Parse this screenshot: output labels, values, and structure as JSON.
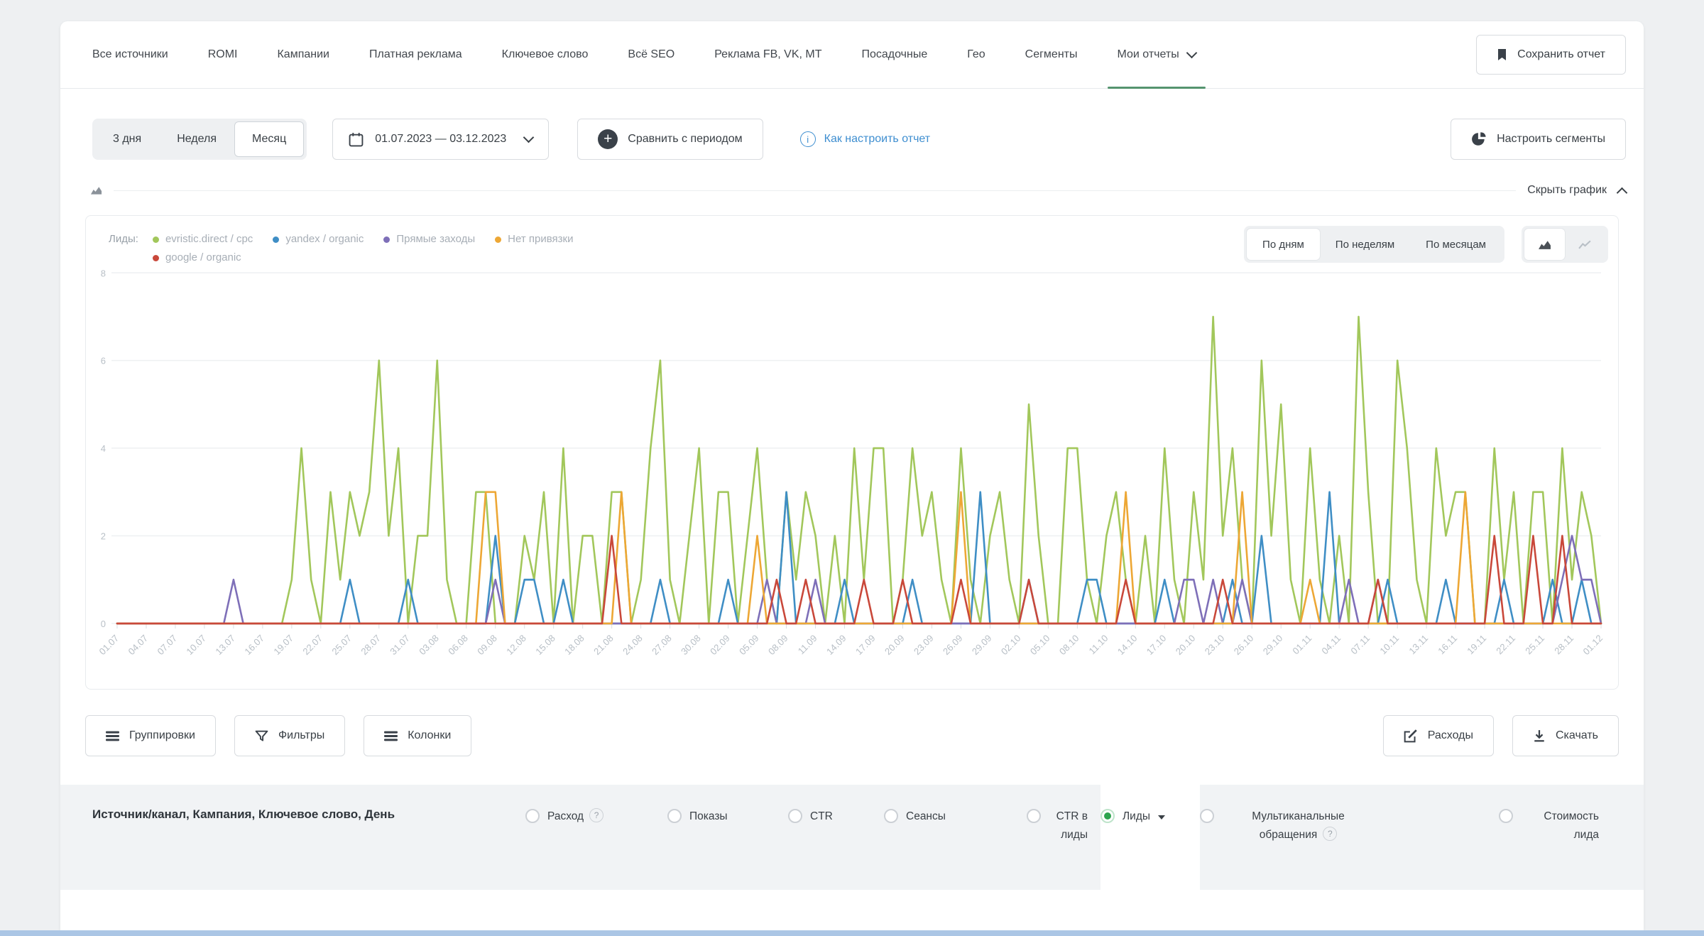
{
  "tabs": {
    "items": [
      {
        "label": "Все источники"
      },
      {
        "label": "ROMI"
      },
      {
        "label": "Кампании"
      },
      {
        "label": "Платная реклама"
      },
      {
        "label": "Ключевое слово"
      },
      {
        "label": "Всё SEO"
      },
      {
        "label": "Реклама FB, VK, MT"
      },
      {
        "label": "Посадочные"
      },
      {
        "label": "Гео"
      },
      {
        "label": "Сегменты"
      },
      {
        "label": "Мои отчеты",
        "active": true,
        "chevron": true
      }
    ],
    "save_label": "Сохранить отчет"
  },
  "controls": {
    "range_options": [
      "3 дня",
      "Неделя",
      "Месяц"
    ],
    "range_selected": "Месяц",
    "date_range": "01.07.2023 — 03.12.2023",
    "compare_label": "Сравнить с периодом",
    "help_label": "Как настроить отчет",
    "segments_label": "Настроить сегменты"
  },
  "chart_section": {
    "hide_label": "Скрыть график",
    "legend_label": "Лиды:",
    "period_options": [
      "По дням",
      "По неделям",
      "По месяцам"
    ],
    "period_selected": "По дням"
  },
  "chart_data": {
    "type": "line",
    "title": "Лиды",
    "metric": "Лиды",
    "x_start": "01.07.2023",
    "x_end": "01.12.2023",
    "x_unit": "day",
    "tick_every_days": 3,
    "x_tick_labels": [
      "01.07",
      "04.07",
      "07.07",
      "10.07",
      "13.07",
      "16.07",
      "19.07",
      "22.07",
      "25.07",
      "28.07",
      "31.07",
      "03.08",
      "06.08",
      "09.08",
      "12.08",
      "15.08",
      "18.08",
      "21.08",
      "24.08",
      "27.08",
      "30.08",
      "02.09",
      "05.09",
      "08.09",
      "11.09",
      "14.09",
      "17.09",
      "20.09",
      "23.09",
      "26.09",
      "29.09",
      "02.10",
      "05.10",
      "08.10",
      "11.10",
      "14.10",
      "17.10",
      "20.10",
      "23.10",
      "26.10",
      "29.10",
      "01.11",
      "04.11",
      "07.11",
      "10.11",
      "13.11",
      "16.11",
      "19.11",
      "22.11",
      "25.11",
      "28.11",
      "01.12"
    ],
    "ylim": [
      0,
      8
    ],
    "yticks": [
      0,
      2,
      4,
      6,
      8
    ],
    "grid": "horizontal",
    "legend_position": "top-left",
    "legend_rows": [
      [
        0,
        1,
        2,
        3
      ],
      [
        4
      ]
    ],
    "series": [
      {
        "name": "evristic.direct / cpc",
        "color": "#a2c75b",
        "values": [
          0,
          0,
          0,
          0,
          0,
          0,
          0,
          0,
          0,
          0,
          0,
          0,
          0,
          0,
          0,
          0,
          0,
          0,
          1,
          4,
          1,
          0,
          3,
          1,
          3,
          2,
          3,
          6,
          2,
          4,
          0,
          2,
          2,
          6,
          1,
          0,
          0,
          3,
          3,
          0,
          0,
          0,
          2,
          1,
          3,
          0,
          4,
          0,
          2,
          2,
          0,
          3,
          3,
          0,
          1,
          4,
          6,
          1,
          0,
          2,
          4,
          0,
          3,
          3,
          0,
          2,
          4,
          1,
          0,
          3,
          1,
          3,
          2,
          0,
          2,
          0,
          4,
          1,
          4,
          4,
          0,
          1,
          4,
          2,
          3,
          1,
          0,
          4,
          1,
          0,
          2,
          3,
          1,
          0,
          5,
          2,
          0,
          0,
          4,
          4,
          1,
          0,
          2,
          3,
          1,
          0,
          2,
          0,
          4,
          1,
          0,
          3,
          1,
          7,
          2,
          4,
          1,
          0,
          6,
          2,
          5,
          1,
          0,
          4,
          1,
          0,
          2,
          0,
          7,
          3,
          0,
          0,
          6,
          4,
          1,
          0,
          4,
          2,
          3,
          3,
          0,
          0,
          4,
          1,
          3,
          0,
          3,
          3,
          0,
          4,
          1,
          3,
          2,
          0
        ]
      },
      {
        "name": "yandex / organic",
        "color": "#3f8ec5",
        "values": [
          0,
          0,
          0,
          0,
          0,
          0,
          0,
          0,
          0,
          0,
          0,
          0,
          0,
          0,
          0,
          0,
          0,
          0,
          0,
          0,
          0,
          0,
          0,
          0,
          1,
          0,
          0,
          0,
          0,
          0,
          1,
          0,
          0,
          0,
          0,
          0,
          0,
          0,
          0,
          2,
          0,
          0,
          1,
          1,
          0,
          0,
          1,
          0,
          0,
          0,
          0,
          0,
          0,
          0,
          0,
          0,
          1,
          0,
          0,
          0,
          0,
          0,
          0,
          1,
          0,
          0,
          0,
          0,
          0,
          3,
          0,
          0,
          0,
          0,
          0,
          1,
          0,
          0,
          0,
          0,
          0,
          0,
          1,
          0,
          0,
          0,
          0,
          0,
          0,
          3,
          0,
          0,
          0,
          0,
          1,
          0,
          0,
          0,
          0,
          0,
          1,
          1,
          0,
          0,
          0,
          0,
          0,
          0,
          1,
          0,
          0,
          0,
          0,
          0,
          0,
          1,
          0,
          0,
          2,
          0,
          0,
          0,
          0,
          0,
          0,
          3,
          0,
          0,
          0,
          0,
          0,
          1,
          0,
          0,
          0,
          0,
          0,
          1,
          0,
          0,
          0,
          0,
          0,
          1,
          0,
          0,
          0,
          0,
          1,
          0,
          0,
          1,
          0,
          0
        ]
      },
      {
        "name": "Прямые заходы",
        "color": "#7e6fb8",
        "values": [
          0,
          0,
          0,
          0,
          0,
          0,
          0,
          0,
          0,
          0,
          0,
          0,
          1,
          0,
          0,
          0,
          0,
          0,
          0,
          0,
          0,
          0,
          0,
          0,
          0,
          0,
          0,
          0,
          0,
          0,
          0,
          0,
          0,
          0,
          0,
          0,
          0,
          0,
          0,
          1,
          0,
          0,
          0,
          0,
          0,
          0,
          0,
          0,
          0,
          0,
          0,
          0,
          0,
          0,
          0,
          0,
          0,
          0,
          0,
          0,
          0,
          0,
          0,
          0,
          0,
          0,
          0,
          1,
          0,
          0,
          0,
          0,
          1,
          0,
          0,
          0,
          0,
          0,
          0,
          0,
          0,
          0,
          0,
          0,
          0,
          0,
          0,
          0,
          0,
          0,
          0,
          0,
          0,
          0,
          0,
          0,
          0,
          0,
          0,
          0,
          0,
          0,
          0,
          0,
          0,
          0,
          0,
          0,
          0,
          0,
          1,
          1,
          0,
          1,
          0,
          0,
          1,
          0,
          0,
          0,
          0,
          0,
          0,
          0,
          0,
          0,
          0,
          1,
          0,
          0,
          1,
          0,
          0,
          0,
          0,
          0,
          0,
          0,
          0,
          0,
          0,
          0,
          0,
          0,
          0,
          0,
          0,
          0,
          0,
          1,
          2,
          1,
          1,
          0
        ]
      },
      {
        "name": "Нет привязки",
        "color": "#eda735",
        "values": [
          0,
          0,
          0,
          0,
          0,
          0,
          0,
          0,
          0,
          0,
          0,
          0,
          0,
          0,
          0,
          0,
          0,
          0,
          0,
          0,
          0,
          0,
          0,
          0,
          0,
          0,
          0,
          0,
          0,
          0,
          0,
          0,
          0,
          0,
          0,
          0,
          0,
          0,
          3,
          3,
          0,
          0,
          0,
          0,
          0,
          0,
          0,
          0,
          0,
          0,
          0,
          0,
          3,
          0,
          0,
          0,
          0,
          0,
          0,
          0,
          0,
          0,
          0,
          0,
          0,
          0,
          2,
          0,
          0,
          0,
          0,
          0,
          0,
          0,
          0,
          0,
          0,
          0,
          0,
          0,
          0,
          0,
          0,
          0,
          0,
          0,
          0,
          3,
          0,
          0,
          0,
          0,
          0,
          0,
          0,
          0,
          0,
          0,
          0,
          0,
          0,
          0,
          0,
          0,
          3,
          0,
          0,
          0,
          0,
          0,
          0,
          0,
          0,
          0,
          0,
          0,
          3,
          0,
          0,
          0,
          0,
          0,
          0,
          1,
          0,
          0,
          0,
          0,
          0,
          0,
          0,
          0,
          0,
          0,
          0,
          0,
          0,
          0,
          0,
          3,
          0,
          0,
          0,
          0,
          0,
          0,
          0,
          0,
          0,
          0,
          0,
          0,
          0,
          0
        ]
      },
      {
        "name": "google / organic",
        "color": "#c9483a",
        "values": [
          0,
          0,
          0,
          0,
          0,
          0,
          0,
          0,
          0,
          0,
          0,
          0,
          0,
          0,
          0,
          0,
          0,
          0,
          0,
          0,
          0,
          0,
          0,
          0,
          0,
          0,
          0,
          0,
          0,
          0,
          0,
          0,
          0,
          0,
          0,
          0,
          0,
          0,
          0,
          0,
          0,
          0,
          0,
          0,
          0,
          0,
          0,
          0,
          0,
          0,
          0,
          2,
          0,
          0,
          0,
          0,
          0,
          0,
          0,
          0,
          0,
          0,
          0,
          0,
          0,
          0,
          0,
          0,
          1,
          0,
          0,
          1,
          0,
          0,
          0,
          0,
          0,
          1,
          0,
          0,
          0,
          1,
          0,
          0,
          0,
          0,
          0,
          1,
          0,
          0,
          0,
          0,
          0,
          0,
          1,
          0,
          0,
          0,
          0,
          0,
          0,
          0,
          0,
          0,
          1,
          0,
          0,
          0,
          0,
          0,
          0,
          0,
          0,
          0,
          1,
          0,
          0,
          0,
          0,
          0,
          0,
          0,
          0,
          0,
          0,
          0,
          0,
          0,
          0,
          0,
          1,
          0,
          0,
          0,
          0,
          0,
          0,
          0,
          0,
          0,
          0,
          0,
          2,
          0,
          0,
          0,
          2,
          0,
          0,
          2,
          0,
          0,
          0,
          0
        ]
      }
    ]
  },
  "toolbar": {
    "groupings_label": "Группировки",
    "filters_label": "Фильтры",
    "columns_label": "Колонки",
    "expenses_label": "Расходы",
    "download_label": "Скачать"
  },
  "table": {
    "main_header": "Источник/канал, Кампания, Ключевое слово, День",
    "columns": [
      {
        "label": "Расход",
        "help": true
      },
      {
        "label": "Показы"
      },
      {
        "label": "CTR"
      },
      {
        "label": "Сеансы"
      },
      {
        "label": "CTR в лиды",
        "align": "right",
        "wrap": 55
      },
      {
        "label": "Лиды",
        "selected": true,
        "dropdown": true
      },
      {
        "label": "Мультиканальные обращения",
        "help": true,
        "wrap": 215,
        "center": true
      },
      {
        "label": "Стоимость лида",
        "align": "right",
        "wrap": 110
      }
    ]
  },
  "colors": {
    "accent_green": "#2da44e",
    "tab_underline": "#55946f",
    "link_blue": "#3e8ed0",
    "page_bg": "#eef0f2",
    "bottom_strip": "#abc6e5"
  }
}
